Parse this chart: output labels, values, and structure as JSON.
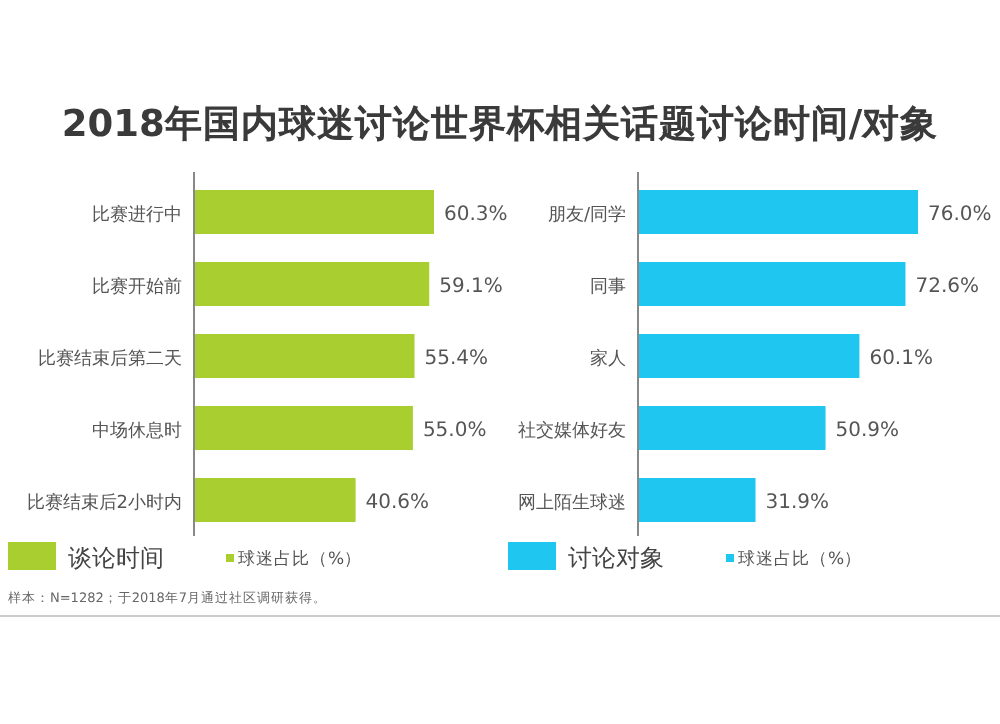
{
  "chart_data": [
    {
      "type": "bar",
      "orientation": "horizontal",
      "title": "2018年国内球迷讨论世界杯相关话题讨论时间/对象",
      "xlabel": "球迷占比（%）",
      "legend": "bottom left",
      "categories": [
        "比赛进行中",
        "比赛开始前",
        "比赛结束后第二天",
        "中场休息时",
        "比赛结束后2小时内"
      ],
      "series": [
        {
          "name": "谈论时间",
          "color": "#a8cf2f",
          "values": [
            60.3,
            59.1,
            55.4,
            55.0,
            40.6
          ],
          "value_labels": [
            "60.3%",
            "59.1%",
            "55.4%",
            "55.0%",
            "40.6%"
          ]
        }
      ],
      "annotations": [
        "样本：N=1282；于2018年7月通过社区调研获得。"
      ]
    },
    {
      "type": "bar",
      "orientation": "horizontal",
      "xlabel": "球迷占比（%）",
      "legend": "bottom left",
      "categories": [
        "朋友/同学",
        "同事",
        "家人",
        "社交媒体好友",
        "网上陌生球迷"
      ],
      "series": [
        {
          "name": "讨论对象",
          "color": "#1fc6f0",
          "values": [
            76.0,
            72.6,
            60.1,
            50.9,
            31.9
          ],
          "value_labels": [
            "76.0%",
            "72.6%",
            "60.1%",
            "50.9%",
            "31.9%"
          ]
        }
      ]
    }
  ]
}
